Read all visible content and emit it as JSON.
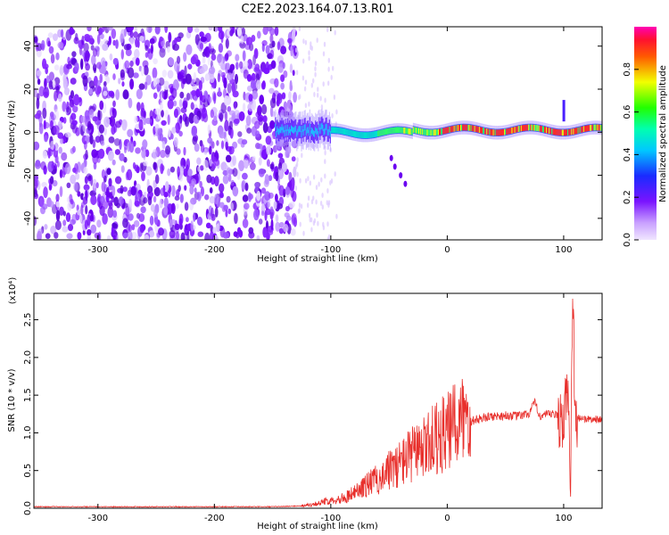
{
  "figure": {
    "title": "C2E2.2023.164.07.13.R01"
  },
  "chart_data": [
    {
      "type": "heatmap",
      "xlabel": "Height of straight line (km)",
      "ylabel": "Frequency (Hz)",
      "xlim": [
        -355,
        133
      ],
      "ylim": [
        -50,
        49
      ],
      "x_ticks": [
        -300,
        -200,
        -100,
        0,
        100
      ],
      "y_ticks": [
        -40,
        -20,
        0,
        20,
        40
      ],
      "x_tick_labels": [
        "-300",
        "-200",
        "-100",
        "0",
        "100"
      ],
      "y_tick_labels": [
        "-40",
        "-20",
        "0",
        "20",
        "40"
      ],
      "colormap": "rainbow (violet → blue → cyan → green → yellow → red → magenta)",
      "colorbar": {
        "label": "Normalized spectral amplitude",
        "range": [
          0,
          1
        ],
        "ticks": [
          0.0,
          0.2,
          0.4,
          0.6,
          0.8
        ],
        "tick_labels": [
          "0.0",
          "0.2",
          "0.4",
          "0.6",
          "0.8"
        ]
      },
      "features": {
        "noise_region_x": [
          -355,
          -130
        ],
        "signal_band_center_hz": 1,
        "signal_band_x": [
          -148,
          133
        ],
        "peak_amplitude_x": [
          -10,
          133
        ],
        "spike_near_x": 100
      }
    },
    {
      "type": "line",
      "xlabel": "Height of straight line (km)",
      "ylabel": "SNR (10 * v/v)",
      "y_scale_label": "(x10⁴)",
      "xlim": [
        -355,
        133
      ],
      "ylim": [
        0,
        2.85
      ],
      "x_ticks": [
        -300,
        -200,
        -100,
        0,
        100
      ],
      "y_ticks": [
        0.0,
        0.5,
        1.0,
        1.5,
        2.0,
        2.5
      ],
      "x_tick_labels": [
        "-300",
        "-200",
        "-100",
        "0",
        "100"
      ],
      "y_tick_labels": [
        "0.0",
        "0.5",
        "1.0",
        "1.5",
        "2.0",
        "2.5"
      ],
      "line_color": "#e8302c",
      "series": [
        {
          "x": [
            -355,
            -300,
            -250,
            -200,
            -150,
            -125,
            -110,
            -100,
            -90,
            -80,
            -70,
            -60,
            -50,
            -40,
            -30,
            -20,
            -10,
            0,
            10,
            20,
            30,
            40,
            50,
            60,
            70,
            75,
            80,
            90,
            100,
            103,
            106,
            108,
            110,
            115,
            120,
            133
          ],
          "values": [
            0.02,
            0.02,
            0.02,
            0.02,
            0.02,
            0.03,
            0.06,
            0.1,
            0.12,
            0.18,
            0.28,
            0.35,
            0.45,
            0.55,
            0.65,
            0.72,
            0.85,
            0.9,
            1.05,
            1.15,
            1.2,
            1.22,
            1.23,
            1.22,
            1.25,
            1.4,
            1.22,
            1.25,
            1.2,
            1.55,
            0.55,
            2.8,
            1.2,
            1.2,
            1.18,
            1.18
          ]
        }
      ]
    }
  ]
}
